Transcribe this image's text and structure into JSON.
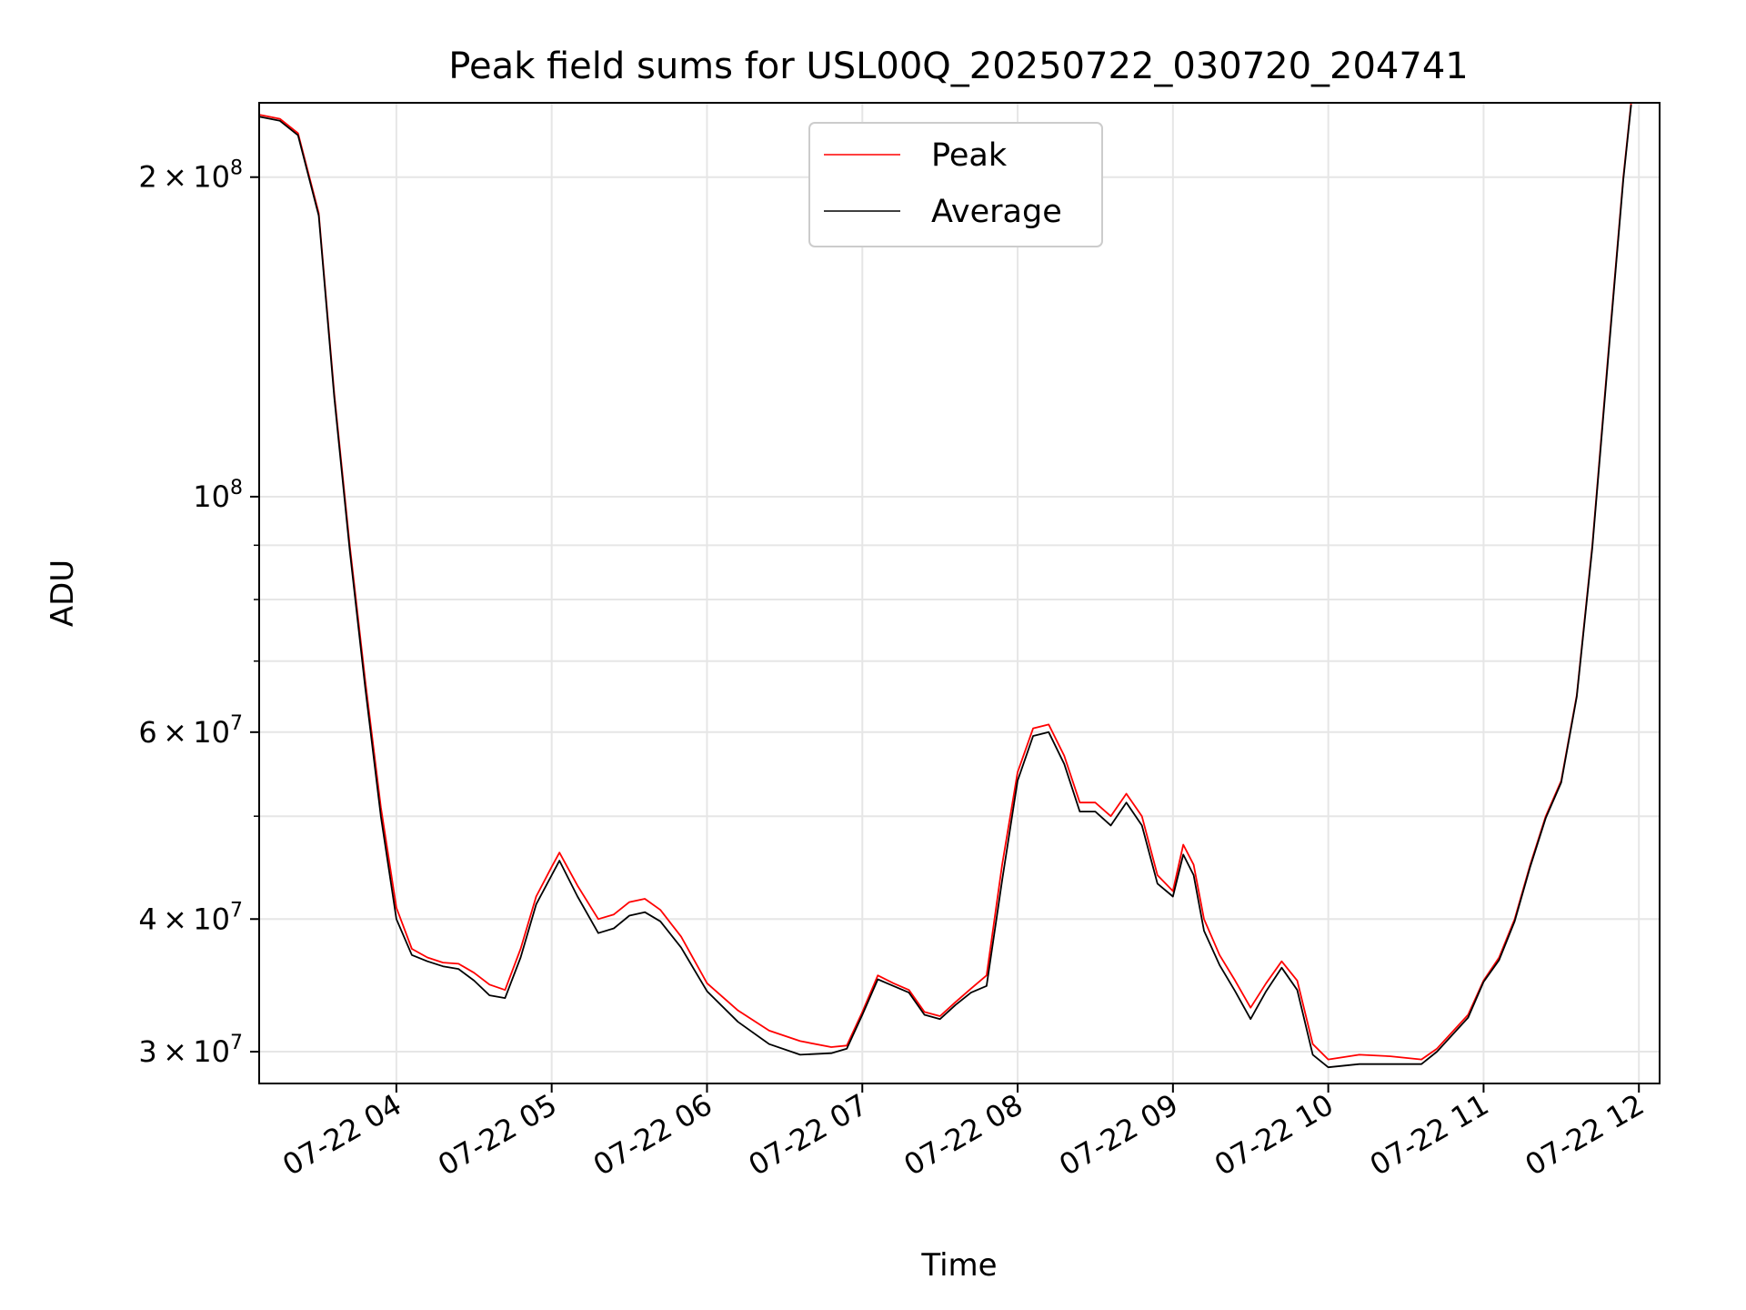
{
  "chart_data": {
    "type": "line",
    "title": "Peak field sums for USL00Q_20250722_030720_204741",
    "xlabel": "Time",
    "ylabel": "ADU",
    "yscale": "log",
    "ylim": [
      28000000,
      235000000
    ],
    "xlim": [
      "2025-07-22T03:07",
      "2025-07-22T12:08"
    ],
    "grid": true,
    "legend_position": "upper center",
    "x_ticks": [
      "07-22 04",
      "07-22 05",
      "07-22 06",
      "07-22 07",
      "07-22 08",
      "07-22 09",
      "07-22 10",
      "07-22 11",
      "07-22 12"
    ],
    "y_ticks": [
      {
        "value": 30000000,
        "mantissa": "3",
        "exp": "7"
      },
      {
        "value": 40000000,
        "mantissa": "4",
        "exp": "7"
      },
      {
        "value": 60000000,
        "mantissa": "6",
        "exp": "7"
      },
      {
        "value": 100000000,
        "mantissa": "",
        "exp": "8"
      },
      {
        "value": 200000000,
        "mantissa": "2",
        "exp": "8"
      }
    ],
    "y_minor_ticks": [
      50000000,
      70000000,
      80000000,
      90000000
    ],
    "series": [
      {
        "name": "Peak",
        "color": "#ff0000",
        "points": [
          [
            "03:07",
            229000000
          ],
          [
            "03:15",
            227000000
          ],
          [
            "03:22",
            220000000
          ],
          [
            "03:30",
            185000000
          ],
          [
            "03:36",
            125000000
          ],
          [
            "03:42",
            90000000
          ],
          [
            "03:48",
            67000000
          ],
          [
            "03:54",
            51000000
          ],
          [
            "04:00",
            41000000
          ],
          [
            "04:06",
            37500000
          ],
          [
            "04:12",
            36800000
          ],
          [
            "04:18",
            36400000
          ],
          [
            "04:24",
            36300000
          ],
          [
            "04:30",
            35600000
          ],
          [
            "04:36",
            34700000
          ],
          [
            "04:42",
            34300000
          ],
          [
            "04:48",
            37500000
          ],
          [
            "04:54",
            42000000
          ],
          [
            "05:00",
            44800000
          ],
          [
            "05:03",
            46200000
          ],
          [
            "05:10",
            43000000
          ],
          [
            "05:18",
            40000000
          ],
          [
            "05:24",
            40400000
          ],
          [
            "05:30",
            41500000
          ],
          [
            "05:36",
            41800000
          ],
          [
            "05:42",
            40800000
          ],
          [
            "05:50",
            38500000
          ],
          [
            "06:00",
            34800000
          ],
          [
            "06:12",
            32800000
          ],
          [
            "06:24",
            31400000
          ],
          [
            "06:36",
            30700000
          ],
          [
            "06:48",
            30300000
          ],
          [
            "06:54",
            30400000
          ],
          [
            "07:00",
            32700000
          ],
          [
            "07:06",
            35400000
          ],
          [
            "07:12",
            34800000
          ],
          [
            "07:18",
            34300000
          ],
          [
            "07:24",
            32700000
          ],
          [
            "07:30",
            32400000
          ],
          [
            "07:36",
            33400000
          ],
          [
            "07:42",
            34400000
          ],
          [
            "07:48",
            35400000
          ],
          [
            "07:54",
            45000000
          ],
          [
            "08:00",
            55000000
          ],
          [
            "08:06",
            60500000
          ],
          [
            "08:12",
            61000000
          ],
          [
            "08:18",
            57000000
          ],
          [
            "08:24",
            51500000
          ],
          [
            "08:30",
            51500000
          ],
          [
            "08:36",
            50000000
          ],
          [
            "08:42",
            52500000
          ],
          [
            "08:48",
            50000000
          ],
          [
            "08:54",
            44000000
          ],
          [
            "09:00",
            42500000
          ],
          [
            "09:04",
            47000000
          ],
          [
            "09:08",
            45000000
          ],
          [
            "09:12",
            40000000
          ],
          [
            "09:18",
            37000000
          ],
          [
            "09:24",
            35000000
          ],
          [
            "09:30",
            33000000
          ],
          [
            "09:36",
            34800000
          ],
          [
            "09:42",
            36500000
          ],
          [
            "09:48",
            35000000
          ],
          [
            "09:54",
            30500000
          ],
          [
            "10:00",
            29500000
          ],
          [
            "10:12",
            29800000
          ],
          [
            "10:24",
            29700000
          ],
          [
            "10:36",
            29500000
          ],
          [
            "10:42",
            30200000
          ],
          [
            "10:54",
            32500000
          ],
          [
            "11:00",
            35000000
          ],
          [
            "11:06",
            36800000
          ],
          [
            "11:12",
            40000000
          ],
          [
            "11:18",
            45000000
          ],
          [
            "11:24",
            50000000
          ],
          [
            "11:30",
            54000000
          ],
          [
            "11:36",
            65000000
          ],
          [
            "11:42",
            90000000
          ],
          [
            "11:48",
            135000000
          ],
          [
            "11:54",
            200000000
          ],
          [
            "11:57",
            235000000
          ]
        ]
      },
      {
        "name": "Average",
        "color": "#000000",
        "points": [
          [
            "03:07",
            228000000
          ],
          [
            "03:15",
            226000000
          ],
          [
            "03:22",
            219000000
          ],
          [
            "03:30",
            184000000
          ],
          [
            "03:36",
            124000000
          ],
          [
            "03:42",
            89000000
          ],
          [
            "03:48",
            66000000
          ],
          [
            "03:54",
            50000000
          ],
          [
            "04:00",
            40000000
          ],
          [
            "04:06",
            37000000
          ],
          [
            "04:12",
            36500000
          ],
          [
            "04:18",
            36100000
          ],
          [
            "04:24",
            35900000
          ],
          [
            "04:30",
            35000000
          ],
          [
            "04:36",
            33900000
          ],
          [
            "04:42",
            33700000
          ],
          [
            "04:48",
            36800000
          ],
          [
            "04:54",
            41300000
          ],
          [
            "05:00",
            44000000
          ],
          [
            "05:03",
            45400000
          ],
          [
            "05:10",
            42000000
          ],
          [
            "05:18",
            38800000
          ],
          [
            "05:24",
            39200000
          ],
          [
            "05:30",
            40300000
          ],
          [
            "05:36",
            40600000
          ],
          [
            "05:42",
            39800000
          ],
          [
            "05:50",
            37600000
          ],
          [
            "06:00",
            34200000
          ],
          [
            "06:12",
            32000000
          ],
          [
            "06:24",
            30500000
          ],
          [
            "06:36",
            29800000
          ],
          [
            "06:48",
            29900000
          ],
          [
            "06:54",
            30200000
          ],
          [
            "07:00",
            32500000
          ],
          [
            "07:06",
            35100000
          ],
          [
            "07:12",
            34600000
          ],
          [
            "07:18",
            34100000
          ],
          [
            "07:24",
            32500000
          ],
          [
            "07:30",
            32200000
          ],
          [
            "07:36",
            33200000
          ],
          [
            "07:42",
            34100000
          ],
          [
            "07:48",
            34600000
          ],
          [
            "07:54",
            43500000
          ],
          [
            "08:00",
            54000000
          ],
          [
            "08:06",
            59500000
          ],
          [
            "08:12",
            60000000
          ],
          [
            "08:18",
            56000000
          ],
          [
            "08:24",
            50500000
          ],
          [
            "08:30",
            50500000
          ],
          [
            "08:36",
            49000000
          ],
          [
            "08:42",
            51500000
          ],
          [
            "08:48",
            49000000
          ],
          [
            "08:54",
            43200000
          ],
          [
            "09:00",
            42000000
          ],
          [
            "09:04",
            46000000
          ],
          [
            "09:08",
            44000000
          ],
          [
            "09:12",
            39000000
          ],
          [
            "09:18",
            36200000
          ],
          [
            "09:24",
            34200000
          ],
          [
            "09:30",
            32200000
          ],
          [
            "09:36",
            34200000
          ],
          [
            "09:42",
            36000000
          ],
          [
            "09:48",
            34300000
          ],
          [
            "09:54",
            29800000
          ],
          [
            "10:00",
            29000000
          ],
          [
            "10:12",
            29200000
          ],
          [
            "10:24",
            29200000
          ],
          [
            "10:36",
            29200000
          ],
          [
            "10:42",
            30000000
          ],
          [
            "10:54",
            32300000
          ],
          [
            "11:00",
            34900000
          ],
          [
            "11:06",
            36600000
          ],
          [
            "11:12",
            39800000
          ],
          [
            "11:18",
            44800000
          ],
          [
            "11:24",
            49800000
          ],
          [
            "11:30",
            53800000
          ],
          [
            "11:36",
            64800000
          ],
          [
            "11:42",
            89500000
          ],
          [
            "11:48",
            134000000
          ],
          [
            "11:54",
            199000000
          ],
          [
            "11:57",
            234000000
          ]
        ]
      }
    ]
  }
}
